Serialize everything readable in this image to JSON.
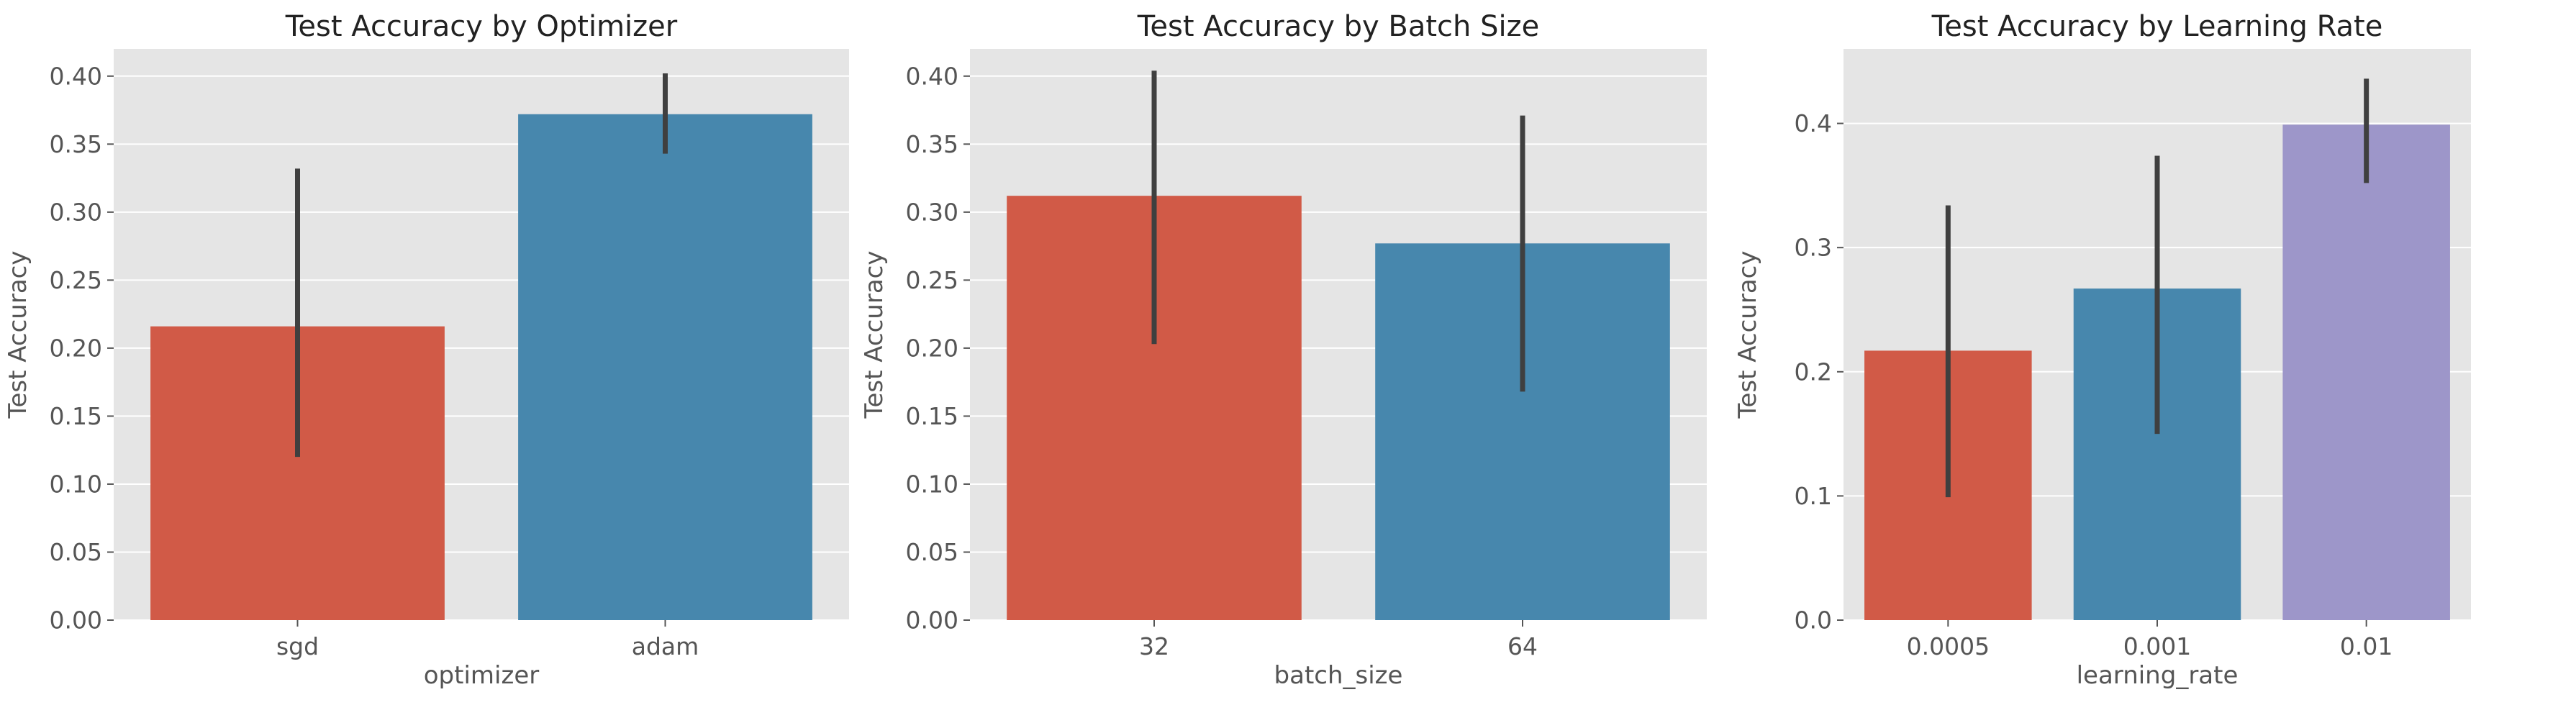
{
  "chart_data": [
    {
      "type": "bar",
      "title": "Test Accuracy by Optimizer",
      "xlabel": "optimizer",
      "ylabel": "Test Accuracy",
      "categories": [
        "sgd",
        "adam"
      ],
      "values": [
        0.216,
        0.372
      ],
      "error_low": [
        0.12,
        0.343
      ],
      "error_high": [
        0.332,
        0.402
      ],
      "colors": [
        "#d15a47",
        "#4787ad"
      ],
      "ylim": [
        0,
        0.42
      ],
      "yticks": [
        0.0,
        0.05,
        0.1,
        0.15,
        0.2,
        0.25,
        0.3,
        0.35,
        0.4
      ],
      "ytick_labels": [
        "0.00",
        "0.05",
        "0.10",
        "0.15",
        "0.20",
        "0.25",
        "0.30",
        "0.35",
        "0.40"
      ],
      "grid": true,
      "legend": "none"
    },
    {
      "type": "bar",
      "title": "Test Accuracy by Batch Size",
      "xlabel": "batch_size",
      "ylabel": "Test Accuracy",
      "categories": [
        "32",
        "64"
      ],
      "values": [
        0.312,
        0.277
      ],
      "error_low": [
        0.203,
        0.168
      ],
      "error_high": [
        0.404,
        0.371
      ],
      "colors": [
        "#d15a47",
        "#4787ad"
      ],
      "ylim": [
        0,
        0.42
      ],
      "yticks": [
        0.0,
        0.05,
        0.1,
        0.15,
        0.2,
        0.25,
        0.3,
        0.35,
        0.4
      ],
      "ytick_labels": [
        "0.00",
        "0.05",
        "0.10",
        "0.15",
        "0.20",
        "0.25",
        "0.30",
        "0.35",
        "0.40"
      ],
      "grid": true,
      "legend": "none"
    },
    {
      "type": "bar",
      "title": "Test Accuracy by Learning Rate",
      "xlabel": "learning_rate",
      "ylabel": "Test Accuracy",
      "categories": [
        "0.0005",
        "0.001",
        "0.01"
      ],
      "values": [
        0.217,
        0.267,
        0.399
      ],
      "error_low": [
        0.099,
        0.15,
        0.352
      ],
      "error_high": [
        0.334,
        0.374,
        0.436
      ],
      "colors": [
        "#d15a47",
        "#4787ad",
        "#9d96c9"
      ],
      "ylim": [
        0,
        0.46
      ],
      "yticks": [
        0.0,
        0.1,
        0.2,
        0.3,
        0.4
      ],
      "ytick_labels": [
        "0.0",
        "0.1",
        "0.2",
        "0.3",
        "0.4"
      ],
      "grid": true,
      "legend": "none"
    }
  ]
}
